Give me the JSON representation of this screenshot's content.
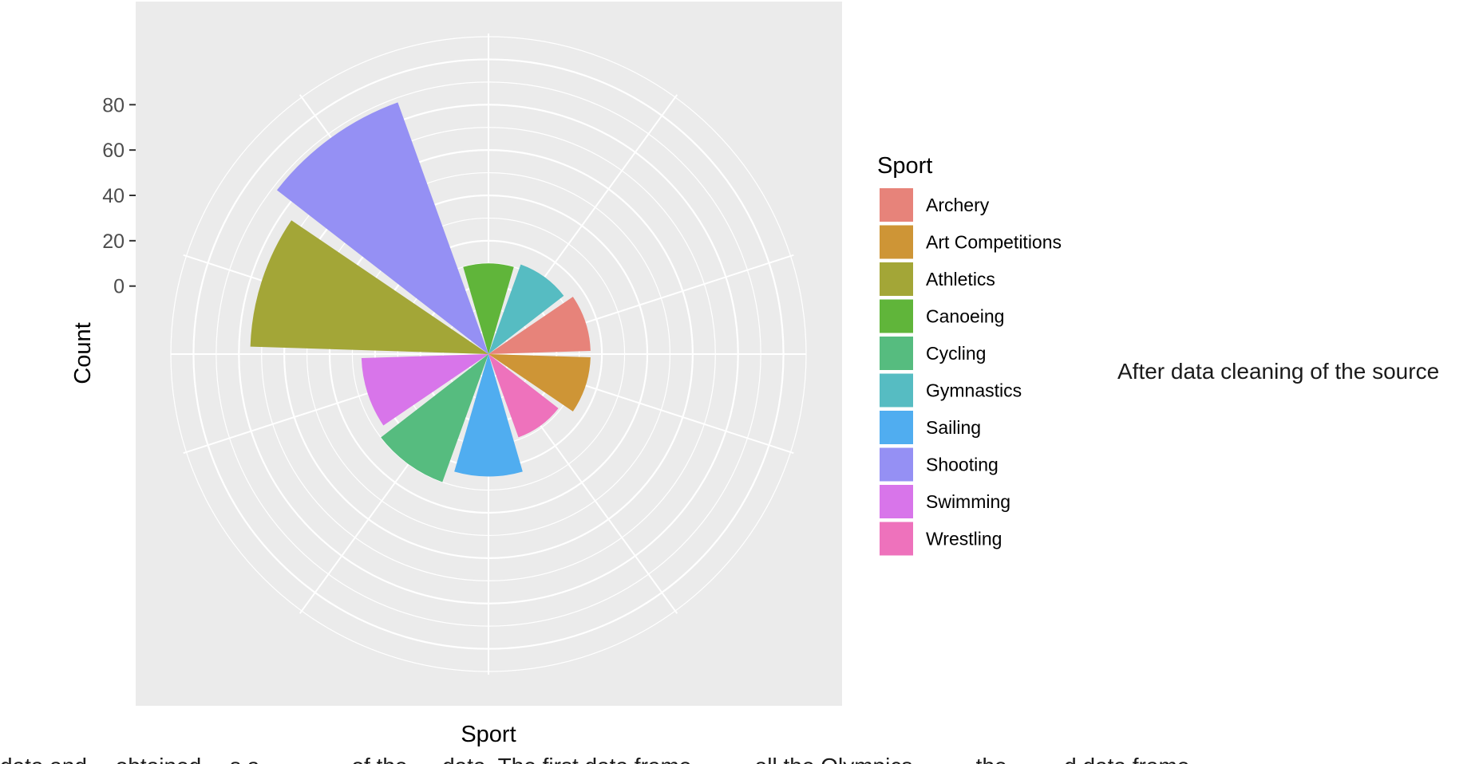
{
  "chart_data": {
    "type": "bar",
    "coord": "polar",
    "categories": [
      "Archery",
      "Art Competitions",
      "Athletics",
      "Canoeing",
      "Cycling",
      "Gymnastics",
      "Sailing",
      "Shooting",
      "Swimming",
      "Wrestling"
    ],
    "values": [
      15,
      15,
      75,
      10,
      30,
      12,
      24,
      88,
      26,
      9
    ],
    "colors": [
      "#E7837A",
      "#CE9536",
      "#A3A637",
      "#60B53A",
      "#56BC7F",
      "#56BCC2",
      "#50ADF0",
      "#9590F4",
      "#D875EA",
      "#EE72BC"
    ],
    "angular_order": [
      "Canoeing",
      "Gymnastics",
      "Archery",
      "Art Competitions",
      "Wrestling",
      "Sailing",
      "Cycling",
      "Swimming",
      "Athletics",
      "Shooting"
    ],
    "xlabel": "Sport",
    "ylabel": "Count",
    "ylim": [
      -30,
      110
    ],
    "yticks": [
      0,
      20,
      40,
      60,
      80
    ],
    "grid": true,
    "legend": {
      "title": "Sport",
      "position": "right"
    }
  },
  "annotation": "After data cleaning of the source",
  "caption": "data and…  obtained …s a … … … of the … data. The first data frame … … all the Olympics …   … the …   …d data frame … …"
}
